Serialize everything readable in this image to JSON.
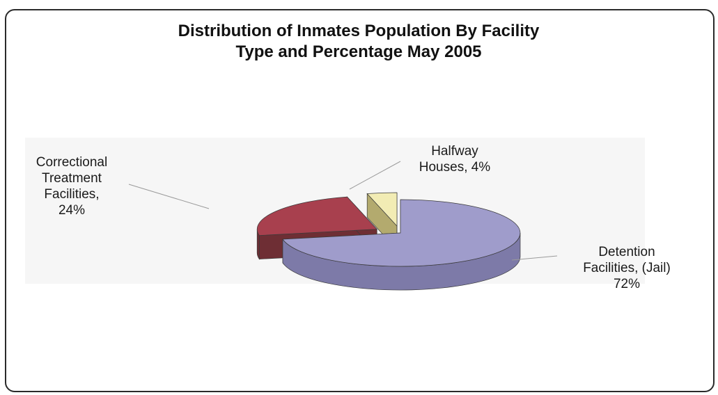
{
  "chart_data": {
    "type": "pie",
    "title_lines": [
      "Distribution of Inmates Population By Facility",
      "Type and Percentage May 2005"
    ],
    "slices": [
      {
        "name": "Detention Facilities, (Jail)",
        "value": 72,
        "label_lines": [
          "Detention",
          "Facilities, (Jail)",
          "72%"
        ],
        "color_top": "#9f9ccb",
        "color_side": "#7d7aa8",
        "exploded": false
      },
      {
        "name": "Correctional Treatment Facilities",
        "value": 24,
        "label_lines": [
          "Correctional",
          "Treatment",
          "Facilities,",
          "24%"
        ],
        "color_top": "#a8404e",
        "color_side": "#6e2e34",
        "exploded": true
      },
      {
        "name": "Halfway Houses",
        "value": 4,
        "label_lines": [
          "Halfway",
          "Houses, 4%"
        ],
        "color_top": "#f2ecb4",
        "color_side": "#b3aa6e",
        "exploded": true
      }
    ],
    "style": "3d-exploded",
    "legend": "none"
  }
}
